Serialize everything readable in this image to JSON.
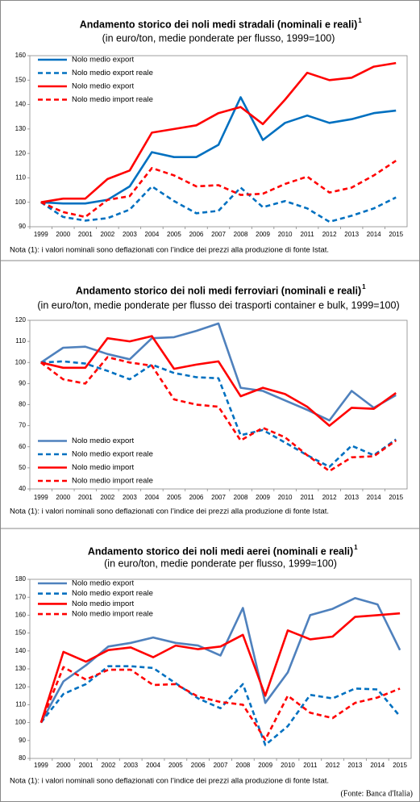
{
  "chart_data": [
    {
      "type": "line",
      "title": "Andamento storico dei noli medi stradali (nominali e reali)",
      "title_superscript": "1",
      "subtitle": "(in euro/ton, medie ponderate per flusso, 1999=100)",
      "note": "Nota (1): i valori nominali sono deflazionati con l’indice dei prezzi alla produzione di fonte Istat.",
      "categories": [
        "1999",
        "2000",
        "2001",
        "2002",
        "2003",
        "2004",
        "2005",
        "2006",
        "2007",
        "2008",
        "2009",
        "2010",
        "2011",
        "2012",
        "2013",
        "2014",
        "2015"
      ],
      "ylim": [
        90,
        160
      ],
      "yticks": [
        90,
        100,
        110,
        120,
        130,
        140,
        150,
        160
      ],
      "grid": false,
      "legend": "upper left",
      "series": [
        {
          "name": "Nolo medio export",
          "color": "#0070c0",
          "dashed": false,
          "values": [
            100,
            99.5,
            99.5,
            101,
            106.5,
            120.5,
            118.5,
            118.5,
            123.5,
            143,
            125.5,
            132.5,
            135.5,
            132.5,
            134,
            136.5,
            137.5
          ]
        },
        {
          "name": "Nolo medio export reale",
          "color": "#0070c0",
          "dashed": true,
          "values": [
            100,
            94,
            92.5,
            93.5,
            97,
            106.5,
            100.5,
            95.5,
            96.5,
            106,
            98,
            100.5,
            97.5,
            92,
            94.5,
            97.5,
            102
          ]
        },
        {
          "name": "Nolo medio export",
          "color": "#ff0000",
          "dashed": false,
          "values": [
            100,
            101.5,
            101.5,
            109.5,
            113,
            128.5,
            130,
            131.5,
            136.5,
            139,
            132,
            142,
            153,
            150,
            151,
            155.5,
            157
          ]
        },
        {
          "name": "Nolo medio import reale",
          "color": "#ff0000",
          "dashed": true,
          "values": [
            100,
            96,
            94,
            101,
            102.5,
            114,
            111,
            106.5,
            107,
            103,
            103.5,
            107.5,
            110.5,
            104,
            106,
            111,
            117
          ]
        }
      ]
    },
    {
      "type": "line",
      "title": "Andamento storico dei noli medi ferroviari  (nominali e reali)",
      "title_superscript": "1",
      "subtitle": "(in euro/ton, medie ponderate per flusso dei trasporti container e bulk, 1999=100)",
      "note": "Nota (1): i valori nominali sono deflazionati con l’indice dei prezzi alla produzione di fonte Istat.",
      "categories": [
        "1999",
        "2000",
        "2001",
        "2002",
        "2003",
        "2004",
        "2005",
        "2006",
        "2007",
        "2008",
        "2009",
        "2010",
        "2011",
        "2012",
        "2013",
        "2014",
        "2015"
      ],
      "ylim": [
        40,
        120
      ],
      "yticks": [
        40,
        50,
        60,
        70,
        80,
        90,
        100,
        110,
        120
      ],
      "grid": false,
      "legend": "lower left",
      "series": [
        {
          "name": "Nolo medio export",
          "color": "#4f81bd",
          "dashed": false,
          "values": [
            100,
            107,
            107.5,
            104,
            101.5,
            111.5,
            112,
            115,
            118.5,
            88,
            86.5,
            82,
            77.5,
            72.5,
            86.5,
            78.5,
            84.5
          ]
        },
        {
          "name": "Nolo medio export reale",
          "color": "#0070c0",
          "dashed": true,
          "values": [
            100,
            100.5,
            99.5,
            96,
            92,
            99,
            95,
            93,
            92.5,
            65.5,
            68,
            62,
            56,
            50.5,
            60.5,
            56,
            63.5
          ]
        },
        {
          "name": "Nolo medio import",
          "color": "#ff0000",
          "dashed": false,
          "values": [
            100,
            97.5,
            97.5,
            111.5,
            110,
            112.5,
            97,
            99,
            100.5,
            84,
            88,
            85,
            79,
            70,
            78.5,
            78,
            85.5
          ]
        },
        {
          "name": "Nolo medio import reale",
          "color": "#ff0000",
          "dashed": true,
          "values": [
            100,
            92,
            90,
            102.5,
            100,
            98.5,
            82.5,
            80,
            79,
            63,
            69,
            64.5,
            56,
            48.5,
            55,
            55.5,
            63
          ]
        }
      ]
    },
    {
      "type": "line",
      "title": "Andamento storico dei noli medi aerei (nominali e reali)",
      "title_superscript": "1",
      "subtitle": "(in euro/ton, medie ponderate per flusso, 1999=100)",
      "note": "Nota (1): i valori nominali sono deflazionati con l’indice dei prezzi alla produzione di fonte Istat.",
      "categories": [
        "1999",
        "2000",
        "2001",
        "2002",
        "2003",
        "2004",
        "2005",
        "2006",
        "2007",
        "2008",
        "2009",
        "2010",
        "2011",
        "2012",
        "2013",
        "2014",
        "2015"
      ],
      "ylim": [
        80,
        180
      ],
      "yticks": [
        80,
        90,
        100,
        110,
        120,
        130,
        140,
        150,
        160,
        170,
        180
      ],
      "grid": false,
      "legend": "upper left",
      "series": [
        {
          "name": "Nolo medio export",
          "color": "#4f81bd",
          "dashed": false,
          "values": [
            100,
            123,
            132,
            142.5,
            144.5,
            147.5,
            144.5,
            143,
            137.5,
            164,
            111,
            128,
            160,
            163.5,
            169.5,
            166,
            140.5
          ]
        },
        {
          "name": "Nolo medio export reale",
          "color": "#0070c0",
          "dashed": true,
          "values": [
            100,
            116,
            121.5,
            131.5,
            131.5,
            130.5,
            122,
            113.5,
            108,
            121.5,
            87.5,
            98,
            115.5,
            113.5,
            119,
            118.5,
            103.5
          ]
        },
        {
          "name": "Nolo medio import",
          "color": "#ff0000",
          "dashed": false,
          "values": [
            100,
            139.5,
            134,
            140.5,
            142,
            136.5,
            143,
            141,
            142.5,
            149,
            115,
            151.5,
            146.5,
            148,
            159,
            160,
            161
          ]
        },
        {
          "name": "Nolo medio import reale",
          "color": "#ff0000",
          "dashed": true,
          "values": [
            100,
            131,
            124,
            129.5,
            129.5,
            121,
            121.5,
            114.5,
            111.5,
            110,
            90.5,
            115,
            105.5,
            102.5,
            111,
            114,
            119
          ]
        }
      ]
    }
  ],
  "source": "(Fonte: Banca d'Italia)"
}
